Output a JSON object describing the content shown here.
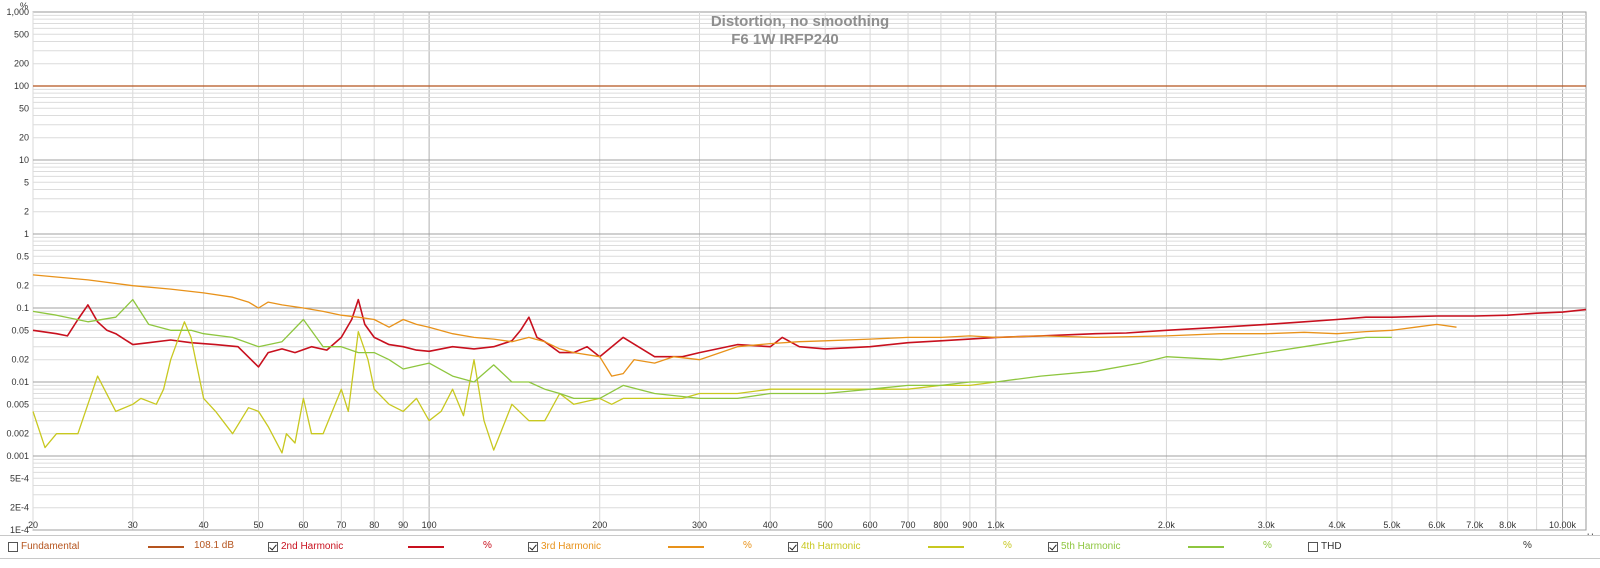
{
  "chart_data": {
    "type": "line",
    "title": "Distortion, no smoothing",
    "subtitle": "F6 1W IRFP240",
    "x_scale": "log",
    "y_scale": "log",
    "xlim": [
      20,
      11000
    ],
    "ylim": [
      0.0001,
      1000
    ],
    "y_unit_label": "%",
    "x_unit_label": "Hz",
    "grid": true,
    "legend_position": "bottom",
    "x_ticks": [
      {
        "v": 20,
        "label": "20"
      },
      {
        "v": 30,
        "label": "30"
      },
      {
        "v": 40,
        "label": "40"
      },
      {
        "v": 50,
        "label": "50"
      },
      {
        "v": 60,
        "label": "60"
      },
      {
        "v": 70,
        "label": "70"
      },
      {
        "v": 80,
        "label": "80"
      },
      {
        "v": 90,
        "label": "90"
      },
      {
        "v": 100,
        "label": "100"
      },
      {
        "v": 200,
        "label": "200"
      },
      {
        "v": 300,
        "label": "300"
      },
      {
        "v": 400,
        "label": "400"
      },
      {
        "v": 500,
        "label": "500"
      },
      {
        "v": 600,
        "label": "600"
      },
      {
        "v": 700,
        "label": "700"
      },
      {
        "v": 800,
        "label": "800"
      },
      {
        "v": 900,
        "label": "900"
      },
      {
        "v": 1000,
        "label": "1.0k"
      },
      {
        "v": 2000,
        "label": "2.0k"
      },
      {
        "v": 3000,
        "label": "3.0k"
      },
      {
        "v": 4000,
        "label": "4.0k"
      },
      {
        "v": 5000,
        "label": "5.0k"
      },
      {
        "v": 6000,
        "label": "6.0k"
      },
      {
        "v": 7000,
        "label": "7.0k"
      },
      {
        "v": 8000,
        "label": "8.0k"
      },
      {
        "v": 10000,
        "label": "10.00k"
      }
    ],
    "y_ticks": [
      {
        "v": 1000,
        "label": "1,000"
      },
      {
        "v": 500,
        "label": "500"
      },
      {
        "v": 200,
        "label": "200"
      },
      {
        "v": 100,
        "label": "100"
      },
      {
        "v": 50,
        "label": "50"
      },
      {
        "v": 20,
        "label": "20"
      },
      {
        "v": 10,
        "label": "10"
      },
      {
        "v": 5,
        "label": "5"
      },
      {
        "v": 2,
        "label": "2"
      },
      {
        "v": 1,
        "label": "1"
      },
      {
        "v": 0.5,
        "label": "0.5"
      },
      {
        "v": 0.2,
        "label": "0.2"
      },
      {
        "v": 0.1,
        "label": "0.1"
      },
      {
        "v": 0.05,
        "label": "0.05"
      },
      {
        "v": 0.02,
        "label": "0.02"
      },
      {
        "v": 0.01,
        "label": "0.01"
      },
      {
        "v": 0.005,
        "label": "0.005"
      },
      {
        "v": 0.002,
        "label": "0.002"
      },
      {
        "v": 0.001,
        "label": "0.001"
      },
      {
        "v": 0.0005,
        "label": "5E-4"
      },
      {
        "v": 0.0002,
        "label": "2E-4"
      },
      {
        "v": 0.0001,
        "label": "1E-4"
      }
    ],
    "series": [
      {
        "name": "Fundamental",
        "color": "#b5541e",
        "x": [
          20,
          11000
        ],
        "y": [
          100,
          100
        ]
      },
      {
        "name": "2nd Harmonic",
        "color": "#c8101e",
        "x": [
          20,
          22,
          23,
          24,
          25,
          26,
          27,
          28,
          30,
          32,
          35,
          38,
          42,
          46,
          50,
          52,
          55,
          58,
          62,
          66,
          70,
          73,
          75,
          77,
          80,
          85,
          90,
          95,
          100,
          110,
          120,
          130,
          140,
          145,
          150,
          155,
          160,
          170,
          180,
          190,
          200,
          220,
          250,
          280,
          300,
          350,
          400,
          420,
          450,
          500,
          600,
          700,
          800,
          900,
          1000,
          1200,
          1500,
          1700,
          2000,
          2500,
          3000,
          3500,
          4000,
          4500,
          5000,
          6000,
          7000,
          8000,
          9000,
          10000,
          11000
        ],
        "y": [
          0.05,
          0.045,
          0.042,
          0.07,
          0.11,
          0.065,
          0.05,
          0.045,
          0.032,
          0.034,
          0.037,
          0.034,
          0.032,
          0.03,
          0.016,
          0.025,
          0.028,
          0.025,
          0.03,
          0.027,
          0.04,
          0.07,
          0.13,
          0.06,
          0.04,
          0.032,
          0.03,
          0.027,
          0.026,
          0.03,
          0.028,
          0.03,
          0.036,
          0.05,
          0.075,
          0.04,
          0.035,
          0.025,
          0.025,
          0.03,
          0.022,
          0.04,
          0.022,
          0.022,
          0.025,
          0.032,
          0.03,
          0.04,
          0.03,
          0.028,
          0.03,
          0.034,
          0.036,
          0.038,
          0.04,
          0.042,
          0.045,
          0.046,
          0.05,
          0.055,
          0.06,
          0.065,
          0.07,
          0.075,
          0.075,
          0.078,
          0.078,
          0.08,
          0.085,
          0.088,
          0.095
        ]
      },
      {
        "name": "3rd Harmonic",
        "color": "#e8921a",
        "x": [
          20,
          25,
          30,
          35,
          40,
          45,
          48,
          50,
          52,
          55,
          60,
          65,
          70,
          75,
          80,
          85,
          90,
          95,
          100,
          110,
          120,
          130,
          140,
          150,
          160,
          170,
          180,
          200,
          210,
          220,
          230,
          250,
          270,
          300,
          350,
          400,
          450,
          500,
          600,
          700,
          800,
          900,
          1000,
          1200,
          1500,
          2000,
          2500,
          3000,
          3500,
          4000,
          4500,
          5000,
          5500,
          6000,
          6500
        ],
        "y": [
          0.28,
          0.24,
          0.2,
          0.18,
          0.16,
          0.14,
          0.12,
          0.1,
          0.12,
          0.11,
          0.1,
          0.09,
          0.08,
          0.075,
          0.07,
          0.055,
          0.07,
          0.06,
          0.055,
          0.045,
          0.04,
          0.038,
          0.035,
          0.04,
          0.035,
          0.028,
          0.025,
          0.022,
          0.012,
          0.013,
          0.02,
          0.018,
          0.022,
          0.02,
          0.03,
          0.033,
          0.035,
          0.036,
          0.038,
          0.04,
          0.04,
          0.042,
          0.04,
          0.042,
          0.04,
          0.042,
          0.045,
          0.045,
          0.047,
          0.045,
          0.048,
          0.05,
          0.055,
          0.06,
          0.055
        ]
      },
      {
        "name": "4th Harmonic",
        "color": "#c8c820",
        "x": [
          20,
          21,
          22,
          24,
          25,
          26,
          28,
          30,
          31,
          33,
          34,
          35,
          37,
          38,
          40,
          42,
          45,
          48,
          50,
          52,
          55,
          56,
          58,
          60,
          62,
          65,
          70,
          72,
          75,
          78,
          80,
          85,
          90,
          95,
          100,
          105,
          110,
          115,
          120,
          125,
          130,
          140,
          150,
          160,
          170,
          180,
          200,
          210,
          220,
          250,
          280,
          300,
          350,
          400,
          450,
          500,
          600,
          700,
          800,
          900,
          1000
        ],
        "y": [
          0.004,
          0.0013,
          0.002,
          0.002,
          0.005,
          0.012,
          0.004,
          0.005,
          0.006,
          0.005,
          0.008,
          0.02,
          0.065,
          0.04,
          0.006,
          0.004,
          0.002,
          0.0045,
          0.004,
          0.0025,
          0.0011,
          0.002,
          0.0015,
          0.006,
          0.002,
          0.002,
          0.008,
          0.004,
          0.048,
          0.02,
          0.008,
          0.005,
          0.004,
          0.006,
          0.003,
          0.004,
          0.008,
          0.0035,
          0.02,
          0.003,
          0.0012,
          0.005,
          0.003,
          0.003,
          0.007,
          0.005,
          0.006,
          0.005,
          0.006,
          0.006,
          0.006,
          0.007,
          0.007,
          0.008,
          0.008,
          0.008,
          0.008,
          0.008,
          0.009,
          0.009,
          0.01
        ]
      },
      {
        "name": "5th Harmonic",
        "color": "#8ec63f",
        "x": [
          20,
          22,
          25,
          28,
          30,
          32,
          35,
          38,
          40,
          45,
          50,
          55,
          60,
          65,
          70,
          75,
          80,
          85,
          90,
          100,
          110,
          120,
          130,
          140,
          150,
          160,
          170,
          180,
          200,
          220,
          250,
          300,
          350,
          400,
          500,
          600,
          700,
          800,
          900,
          1000,
          1200,
          1500,
          1800,
          2000,
          2500,
          3000,
          3500,
          4000,
          4500,
          5000
        ],
        "y": [
          0.09,
          0.08,
          0.065,
          0.075,
          0.13,
          0.06,
          0.05,
          0.05,
          0.045,
          0.04,
          0.03,
          0.035,
          0.07,
          0.03,
          0.03,
          0.025,
          0.025,
          0.02,
          0.015,
          0.018,
          0.012,
          0.01,
          0.017,
          0.01,
          0.01,
          0.008,
          0.007,
          0.006,
          0.006,
          0.009,
          0.007,
          0.006,
          0.006,
          0.007,
          0.007,
          0.008,
          0.009,
          0.009,
          0.01,
          0.01,
          0.012,
          0.014,
          0.018,
          0.022,
          0.02,
          0.025,
          0.03,
          0.035,
          0.04,
          0.04
        ]
      }
    ]
  },
  "legend": [
    {
      "checked": false,
      "label": "Fundamental",
      "value": "108.1 dB",
      "color": "#b5541e",
      "text_color": "#b5541e"
    },
    {
      "checked": true,
      "label": "2nd Harmonic",
      "value": "%",
      "color": "#c8101e",
      "text_color": "#c8101e"
    },
    {
      "checked": true,
      "label": "3rd Harmonic",
      "value": "%",
      "color": "#e8921a",
      "text_color": "#e8921a"
    },
    {
      "checked": true,
      "label": "4th Harmonic",
      "value": "%",
      "color": "#c8c820",
      "text_color": "#c8c820"
    },
    {
      "checked": true,
      "label": "5th Harmonic",
      "value": "%",
      "color": "#8ec63f",
      "text_color": "#8ec63f"
    },
    {
      "checked": false,
      "label": "THD",
      "value": "%",
      "color": "#ffffff",
      "text_color": "#333333"
    }
  ]
}
